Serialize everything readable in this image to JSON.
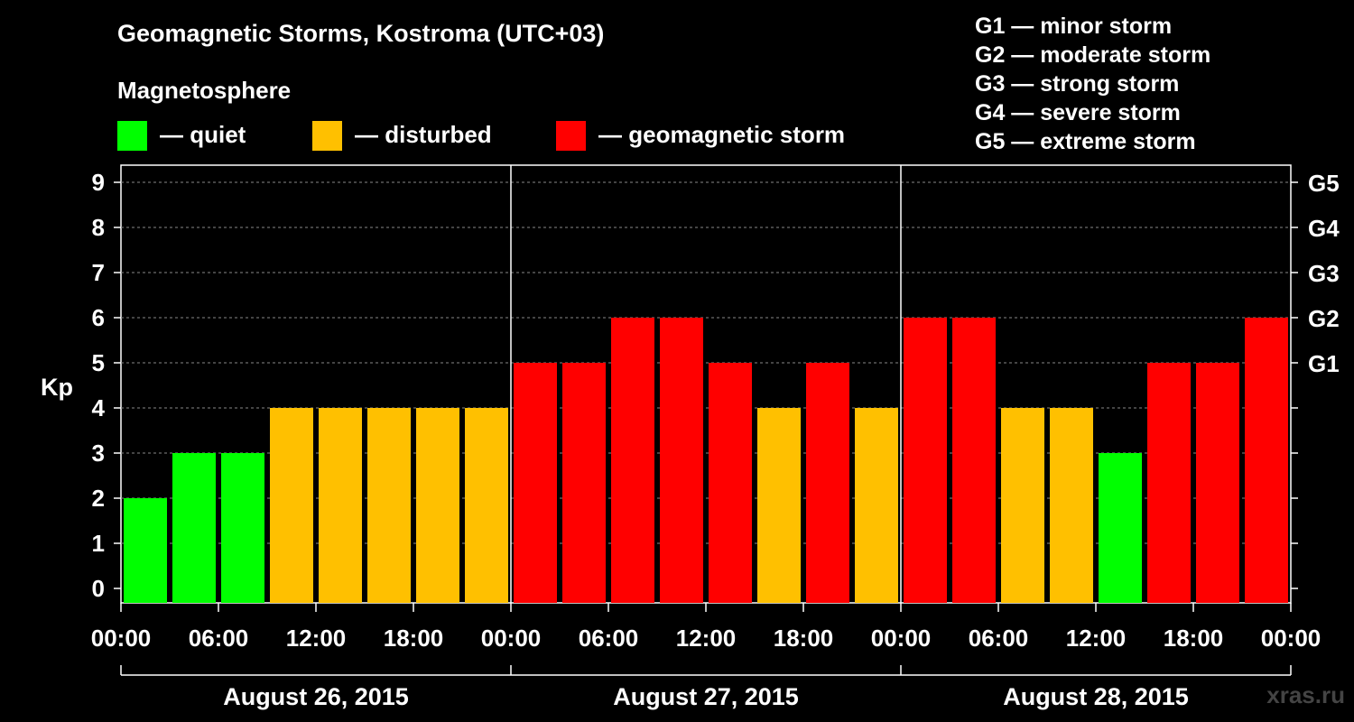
{
  "header": {
    "title": "Geomagnetic Storms, Kostroma (UTC+03)",
    "subtitle": "Magnetosphere"
  },
  "legend": [
    {
      "label": "— quiet",
      "color": "#00ff00"
    },
    {
      "label": "— disturbed",
      "color": "#ffc000"
    },
    {
      "label": "— geomagnetic storm",
      "color": "#ff0000"
    }
  ],
  "storm_levels": [
    "G1 — minor storm",
    "G2 — moderate storm",
    "G3 — strong storm",
    "G4 — severe storm",
    "G5 — extreme storm"
  ],
  "watermark": "xras.ru",
  "chart_data": {
    "type": "bar",
    "ylabel": "Kp",
    "ylim": [
      0,
      9
    ],
    "yticks": [
      0,
      1,
      2,
      3,
      4,
      5,
      6,
      7,
      8,
      9
    ],
    "right_ticks": [
      {
        "value": 5,
        "label": "G1"
      },
      {
        "value": 6,
        "label": "G2"
      },
      {
        "value": 7,
        "label": "G3"
      },
      {
        "value": 8,
        "label": "G4"
      },
      {
        "value": 9,
        "label": "G5"
      }
    ],
    "xtick_labels": [
      "00:00",
      "06:00",
      "12:00",
      "18:00",
      "00:00",
      "06:00",
      "12:00",
      "18:00",
      "00:00",
      "06:00",
      "12:00",
      "18:00",
      "00:00"
    ],
    "days": [
      "August 26, 2015",
      "August 27, 2015",
      "August 28, 2015"
    ],
    "interval_hours": 3,
    "values": [
      2,
      3,
      3,
      4,
      4,
      4,
      4,
      4,
      5,
      5,
      6,
      6,
      5,
      4,
      5,
      4,
      6,
      6,
      4,
      4,
      3,
      5,
      5,
      6
    ],
    "color_scale": {
      "quiet_max": 3,
      "disturbed": 4,
      "storm_min": 5,
      "quiet": "#00ff00",
      "disturbed_color": "#ffc000",
      "storm": "#ff0000"
    },
    "grid": "dashed horizontal at major Kp levels",
    "legend_position": "top"
  }
}
